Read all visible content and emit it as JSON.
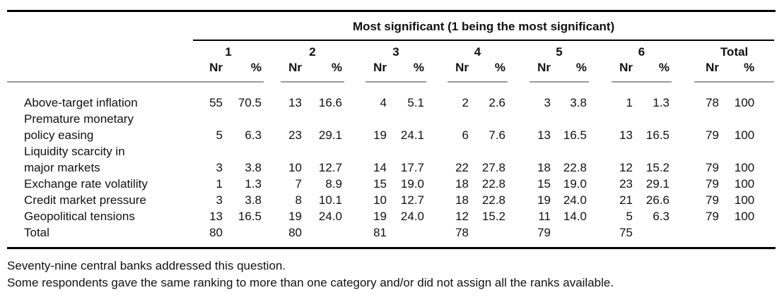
{
  "table": {
    "spanner_title": "Most significant (1 being the most significant)",
    "group_headers": [
      "1",
      "2",
      "3",
      "4",
      "5",
      "6",
      "Total"
    ],
    "sub_headers": [
      "Nr",
      "%"
    ],
    "rows": [
      {
        "label_lines": [
          "Above-target inflation"
        ],
        "cells": [
          "55",
          "70.5",
          "13",
          "16.6",
          "4",
          "5.1",
          "2",
          "2.6",
          "3",
          "3.8",
          "1",
          "1.3",
          "78",
          "100"
        ]
      },
      {
        "label_lines": [
          "Premature monetary",
          "policy easing"
        ],
        "cells": [
          "5",
          "6.3",
          "23",
          "29.1",
          "19",
          "24.1",
          "6",
          "7.6",
          "13",
          "16.5",
          "13",
          "16.5",
          "79",
          "100"
        ]
      },
      {
        "label_lines": [
          "Liquidity scarcity in",
          "major markets"
        ],
        "cells": [
          "3",
          "3.8",
          "10",
          "12.7",
          "14",
          "17.7",
          "22",
          "27.8",
          "18",
          "22.8",
          "12",
          "15.2",
          "79",
          "100"
        ]
      },
      {
        "label_lines": [
          "Exchange rate volatility"
        ],
        "cells": [
          "1",
          "1.3",
          "7",
          "8.9",
          "15",
          "19.0",
          "18",
          "22.8",
          "15",
          "19.0",
          "23",
          "29.1",
          "79",
          "100"
        ]
      },
      {
        "label_lines": [
          "Credit market pressure"
        ],
        "cells": [
          "3",
          "3.8",
          "8",
          "10.1",
          "10",
          "12.7",
          "18",
          "22.8",
          "19",
          "24.0",
          "21",
          "26.6",
          "79",
          "100"
        ]
      },
      {
        "label_lines": [
          "Geopolitical tensions"
        ],
        "cells": [
          "13",
          "16.5",
          "19",
          "24.0",
          "19",
          "24.0",
          "12",
          "15.2",
          "11",
          "14.0",
          "5",
          "6.3",
          "79",
          "100"
        ]
      },
      {
        "label_lines": [
          "Total"
        ],
        "cells": [
          "80",
          "",
          "80",
          "",
          "81",
          "",
          "78",
          "",
          "79",
          "",
          "75",
          "",
          "",
          ""
        ]
      }
    ]
  },
  "footnotes": [
    "Seventy-nine central banks addressed this question.",
    "Some respondents gave the same ranking to more than one category and/or did not assign all the ranks available."
  ],
  "colors": {
    "rule_dark": "#000000",
    "rule_gray": "#9c9c9c",
    "text": "#111111"
  }
}
